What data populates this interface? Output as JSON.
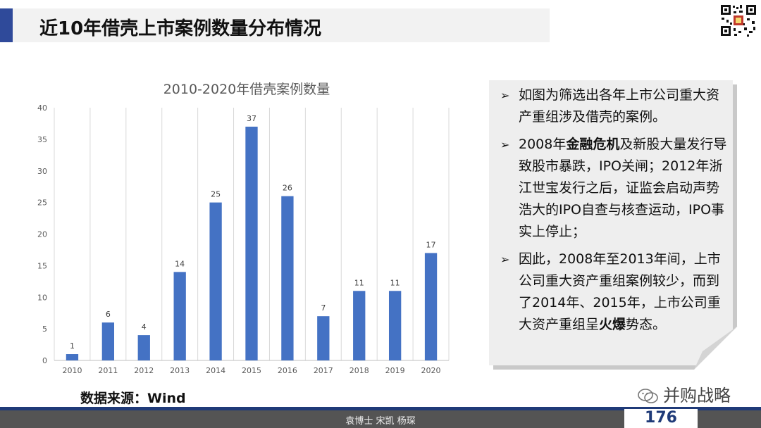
{
  "header": {
    "title": "近10年借壳上市案例数量分布情况"
  },
  "chart_data": {
    "type": "bar",
    "title": "2010-2020年借壳案例数量",
    "categories": [
      "2010",
      "2011",
      "2012",
      "2013",
      "2014",
      "2015",
      "2016",
      "2017",
      "2018",
      "2019",
      "2020"
    ],
    "values": [
      1,
      6,
      4,
      14,
      25,
      37,
      26,
      7,
      11,
      11,
      17
    ],
    "ylim": [
      0,
      40
    ],
    "yticks": [
      0,
      5,
      10,
      15,
      20,
      25,
      30,
      35,
      40
    ],
    "grid": "vertical",
    "bar_color": "#4472c4",
    "data_labels": true
  },
  "source": "数据来源：Wind",
  "panel": {
    "bullets": [
      {
        "parts": [
          {
            "text": "如图为筛选出各年上市公司重大资产重组涉及借壳的案例。",
            "bold": false
          }
        ]
      },
      {
        "parts": [
          {
            "text": "2008年",
            "bold": false
          },
          {
            "text": "金融危机",
            "bold": true
          },
          {
            "text": "及新股大量发行导致股市暴跌，IPO关闸；2012年浙江世宝发行之后，证监会启动声势浩大的IPO自查与核查运动，IPO事实上停止；",
            "bold": false
          }
        ]
      },
      {
        "parts": [
          {
            "text": "因此，2008年至2013年间，上市公司重大资产重组案例较少，而到了2014年、2015年，上市公司重大资产重组呈",
            "bold": false
          },
          {
            "text": "火爆",
            "bold": true
          },
          {
            "text": "势态。",
            "bold": false
          }
        ]
      }
    ]
  },
  "footer": {
    "authors": "袁博士  宋凯  杨琛",
    "page": "176"
  },
  "watermark": {
    "text": "并购战略",
    "icon": "wechat-icon"
  },
  "qr": {
    "icon": "qr-code-icon"
  }
}
